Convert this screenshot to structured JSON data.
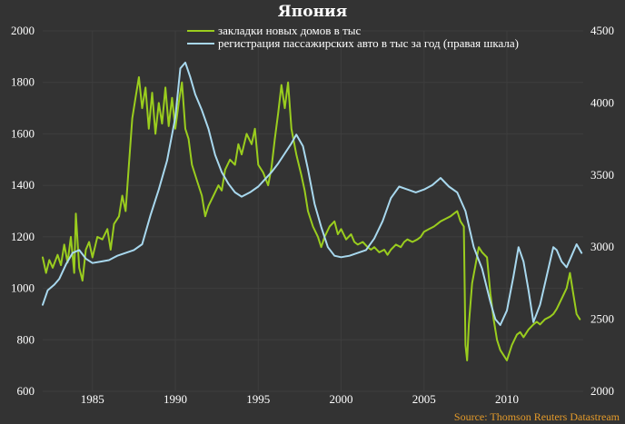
{
  "chart_data": {
    "type": "line",
    "title": "Япония",
    "source": "Source: Thomson Reuters Datastream",
    "x_ticks": [
      "1985",
      "1990",
      "1995",
      "2000",
      "2005",
      "2010"
    ],
    "x_range": [
      1982.0,
      2014.6
    ],
    "y_left": {
      "ticks": [
        "600",
        "800",
        "1000",
        "1200",
        "1400",
        "1600",
        "1800",
        "2000"
      ],
      "range": [
        600,
        2000
      ]
    },
    "y_right": {
      "ticks": [
        "2000",
        "2500",
        "3000",
        "3500",
        "4000",
        "4500"
      ],
      "range": [
        2000,
        4500
      ]
    },
    "legend_position": "top-center",
    "grid": true,
    "series": [
      {
        "name": "закладки новых домов в тыс",
        "axis": "left",
        "color": "#9acd1e",
        "points": [
          [
            1982.0,
            1120
          ],
          [
            1982.2,
            1060
          ],
          [
            1982.4,
            1110
          ],
          [
            1982.6,
            1080
          ],
          [
            1982.9,
            1130
          ],
          [
            1983.1,
            1090
          ],
          [
            1983.3,
            1170
          ],
          [
            1983.5,
            1100
          ],
          [
            1983.7,
            1200
          ],
          [
            1983.9,
            1060
          ],
          [
            1984.0,
            1290
          ],
          [
            1984.2,
            1080
          ],
          [
            1984.4,
            1030
          ],
          [
            1984.6,
            1150
          ],
          [
            1984.8,
            1180
          ],
          [
            1985.0,
            1120
          ],
          [
            1985.3,
            1200
          ],
          [
            1985.6,
            1190
          ],
          [
            1985.9,
            1230
          ],
          [
            1986.1,
            1150
          ],
          [
            1986.3,
            1250
          ],
          [
            1986.6,
            1280
          ],
          [
            1986.8,
            1360
          ],
          [
            1987.0,
            1300
          ],
          [
            1987.2,
            1480
          ],
          [
            1987.4,
            1660
          ],
          [
            1987.6,
            1740
          ],
          [
            1987.8,
            1820
          ],
          [
            1988.0,
            1700
          ],
          [
            1988.2,
            1780
          ],
          [
            1988.4,
            1620
          ],
          [
            1988.6,
            1760
          ],
          [
            1988.8,
            1600
          ],
          [
            1989.0,
            1720
          ],
          [
            1989.2,
            1640
          ],
          [
            1989.4,
            1780
          ],
          [
            1989.6,
            1630
          ],
          [
            1989.8,
            1740
          ],
          [
            1990.0,
            1620
          ],
          [
            1990.2,
            1720
          ],
          [
            1990.4,
            1800
          ],
          [
            1990.6,
            1620
          ],
          [
            1990.8,
            1580
          ],
          [
            1991.0,
            1480
          ],
          [
            1991.3,
            1420
          ],
          [
            1991.6,
            1360
          ],
          [
            1991.8,
            1280
          ],
          [
            1992.0,
            1320
          ],
          [
            1992.3,
            1360
          ],
          [
            1992.6,
            1400
          ],
          [
            1992.8,
            1380
          ],
          [
            1993.0,
            1460
          ],
          [
            1993.3,
            1500
          ],
          [
            1993.6,
            1480
          ],
          [
            1993.8,
            1560
          ],
          [
            1994.0,
            1520
          ],
          [
            1994.3,
            1600
          ],
          [
            1994.6,
            1560
          ],
          [
            1994.8,
            1620
          ],
          [
            1995.0,
            1480
          ],
          [
            1995.3,
            1450
          ],
          [
            1995.6,
            1400
          ],
          [
            1995.8,
            1470
          ],
          [
            1996.0,
            1580
          ],
          [
            1996.2,
            1680
          ],
          [
            1996.4,
            1790
          ],
          [
            1996.6,
            1700
          ],
          [
            1996.8,
            1800
          ],
          [
            1997.0,
            1620
          ],
          [
            1997.3,
            1520
          ],
          [
            1997.6,
            1440
          ],
          [
            1997.8,
            1380
          ],
          [
            1998.0,
            1300
          ],
          [
            1998.3,
            1240
          ],
          [
            1998.6,
            1200
          ],
          [
            1998.8,
            1160
          ],
          [
            1999.0,
            1200
          ],
          [
            1999.3,
            1240
          ],
          [
            1999.6,
            1260
          ],
          [
            1999.8,
            1210
          ],
          [
            2000.0,
            1230
          ],
          [
            2000.3,
            1190
          ],
          [
            2000.6,
            1210
          ],
          [
            2000.8,
            1180
          ],
          [
            2001.0,
            1170
          ],
          [
            2001.3,
            1180
          ],
          [
            2001.6,
            1160
          ],
          [
            2001.8,
            1150
          ],
          [
            2002.0,
            1160
          ],
          [
            2002.3,
            1140
          ],
          [
            2002.6,
            1150
          ],
          [
            2002.8,
            1130
          ],
          [
            2003.0,
            1150
          ],
          [
            2003.3,
            1170
          ],
          [
            2003.6,
            1160
          ],
          [
            2003.8,
            1180
          ],
          [
            2004.0,
            1190
          ],
          [
            2004.3,
            1180
          ],
          [
            2004.6,
            1190
          ],
          [
            2004.8,
            1200
          ],
          [
            2005.0,
            1220
          ],
          [
            2005.3,
            1230
          ],
          [
            2005.6,
            1240
          ],
          [
            2005.8,
            1250
          ],
          [
            2006.0,
            1260
          ],
          [
            2006.3,
            1270
          ],
          [
            2006.6,
            1280
          ],
          [
            2006.8,
            1290
          ],
          [
            2007.0,
            1300
          ],
          [
            2007.2,
            1260
          ],
          [
            2007.4,
            1240
          ],
          [
            2007.5,
            780
          ],
          [
            2007.6,
            720
          ],
          [
            2007.7,
            860
          ],
          [
            2007.9,
            1020
          ],
          [
            2008.1,
            1090
          ],
          [
            2008.3,
            1160
          ],
          [
            2008.5,
            1140
          ],
          [
            2008.8,
            1120
          ],
          [
            2009.0,
            980
          ],
          [
            2009.2,
            880
          ],
          [
            2009.4,
            800
          ],
          [
            2009.6,
            760
          ],
          [
            2009.8,
            740
          ],
          [
            2010.0,
            720
          ],
          [
            2010.3,
            780
          ],
          [
            2010.6,
            820
          ],
          [
            2010.8,
            830
          ],
          [
            2011.0,
            810
          ],
          [
            2011.3,
            840
          ],
          [
            2011.6,
            860
          ],
          [
            2011.8,
            870
          ],
          [
            2012.0,
            860
          ],
          [
            2012.3,
            880
          ],
          [
            2012.6,
            890
          ],
          [
            2012.8,
            900
          ],
          [
            2013.0,
            920
          ],
          [
            2013.3,
            960
          ],
          [
            2013.6,
            1000
          ],
          [
            2013.8,
            1060
          ],
          [
            2014.0,
            980
          ],
          [
            2014.2,
            900
          ],
          [
            2014.4,
            880
          ]
        ]
      },
      {
        "name": "регистрация пассажирских авто в тыс за год (правая шкала)",
        "axis": "right",
        "color": "#a8d8ee",
        "points": [
          [
            1982.0,
            2600
          ],
          [
            1982.3,
            2700
          ],
          [
            1982.7,
            2740
          ],
          [
            1983.0,
            2780
          ],
          [
            1983.4,
            2880
          ],
          [
            1983.8,
            2960
          ],
          [
            1984.2,
            2980
          ],
          [
            1984.6,
            2920
          ],
          [
            1985.0,
            2890
          ],
          [
            1985.5,
            2900
          ],
          [
            1986.0,
            2910
          ],
          [
            1986.5,
            2940
          ],
          [
            1987.0,
            2960
          ],
          [
            1987.5,
            2980
          ],
          [
            1988.0,
            3020
          ],
          [
            1988.5,
            3220
          ],
          [
            1989.0,
            3400
          ],
          [
            1989.5,
            3600
          ],
          [
            1990.0,
            3900
          ],
          [
            1990.3,
            4240
          ],
          [
            1990.6,
            4280
          ],
          [
            1990.9,
            4180
          ],
          [
            1991.2,
            4060
          ],
          [
            1991.6,
            3950
          ],
          [
            1992.0,
            3820
          ],
          [
            1992.4,
            3640
          ],
          [
            1992.8,
            3520
          ],
          [
            1993.2,
            3440
          ],
          [
            1993.6,
            3380
          ],
          [
            1994.0,
            3350
          ],
          [
            1994.5,
            3380
          ],
          [
            1995.0,
            3420
          ],
          [
            1995.4,
            3470
          ],
          [
            1995.8,
            3520
          ],
          [
            1996.2,
            3580
          ],
          [
            1996.6,
            3650
          ],
          [
            1997.0,
            3720
          ],
          [
            1997.3,
            3780
          ],
          [
            1997.7,
            3700
          ],
          [
            1998.0,
            3540
          ],
          [
            1998.4,
            3300
          ],
          [
            1998.8,
            3140
          ],
          [
            1999.2,
            3000
          ],
          [
            1999.6,
            2940
          ],
          [
            2000.0,
            2930
          ],
          [
            2000.5,
            2940
          ],
          [
            2001.0,
            2960
          ],
          [
            2001.5,
            2980
          ],
          [
            2002.0,
            3060
          ],
          [
            2002.5,
            3180
          ],
          [
            2003.0,
            3340
          ],
          [
            2003.5,
            3420
          ],
          [
            2004.0,
            3400
          ],
          [
            2004.5,
            3380
          ],
          [
            2005.0,
            3400
          ],
          [
            2005.5,
            3430
          ],
          [
            2006.0,
            3480
          ],
          [
            2006.5,
            3420
          ],
          [
            2007.0,
            3380
          ],
          [
            2007.5,
            3250
          ],
          [
            2008.0,
            3000
          ],
          [
            2008.5,
            2850
          ],
          [
            2009.0,
            2620
          ],
          [
            2009.3,
            2500
          ],
          [
            2009.6,
            2460
          ],
          [
            2010.0,
            2560
          ],
          [
            2010.4,
            2800
          ],
          [
            2010.7,
            3000
          ],
          [
            2011.0,
            2900
          ],
          [
            2011.3,
            2700
          ],
          [
            2011.6,
            2480
          ],
          [
            2012.0,
            2600
          ],
          [
            2012.4,
            2800
          ],
          [
            2012.8,
            3000
          ],
          [
            2013.0,
            2980
          ],
          [
            2013.3,
            2900
          ],
          [
            2013.6,
            2860
          ],
          [
            2013.9,
            2940
          ],
          [
            2014.2,
            3020
          ],
          [
            2014.5,
            2960
          ]
        ]
      }
    ]
  }
}
